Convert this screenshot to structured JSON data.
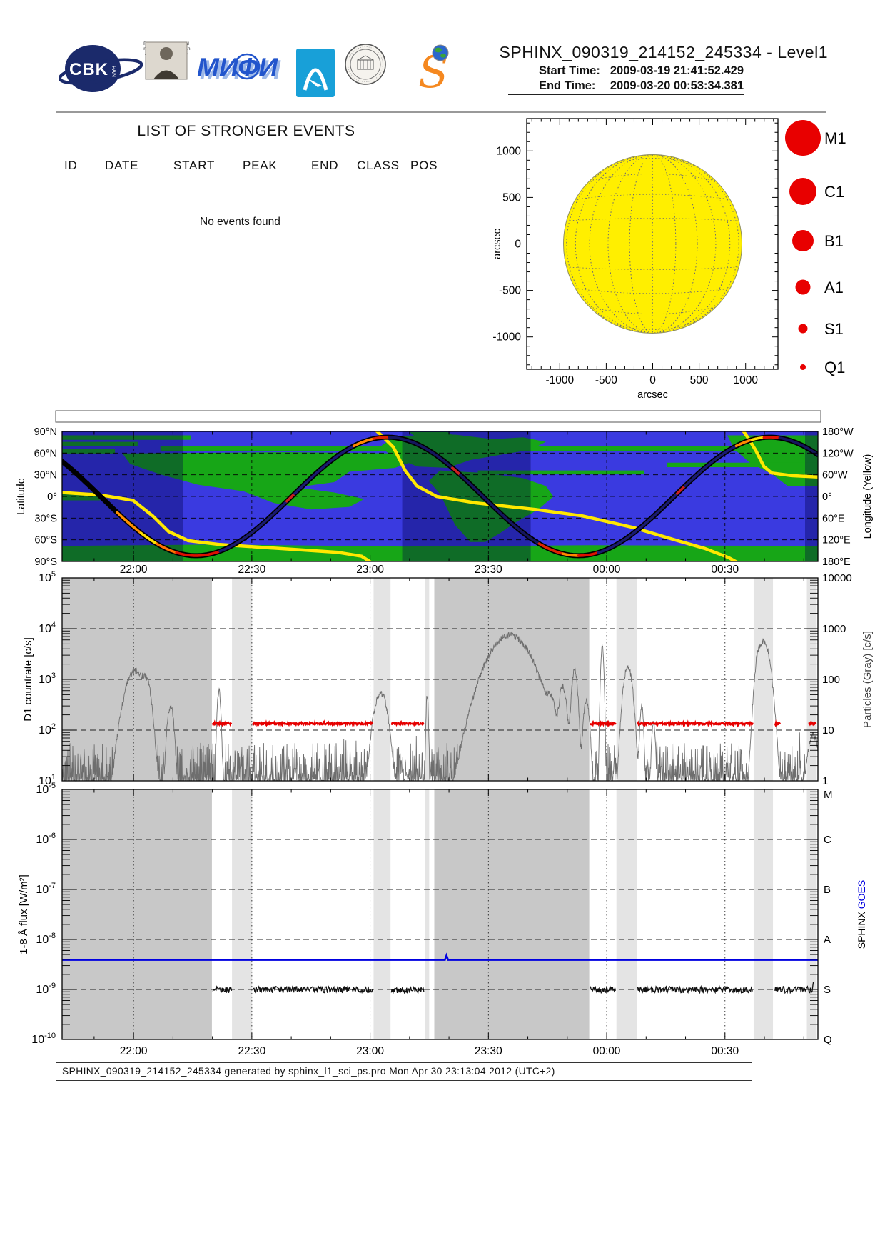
{
  "header": {
    "title": "SPHINX_090319_214152_245334 - Level1",
    "start_time_label": "Start Time:",
    "start_time_value": "2009-03-19  21:41:52.429",
    "end_time_label": "End Time:",
    "end_time_value": "2009-03-20  00:53:34.381",
    "logos": {
      "cbk": {
        "text": "CBK",
        "sub": "PAN"
      },
      "lebedev": {
        "caption_lines": [
          "P.N.Lebedev Physical",
          "Institute of the Russian",
          "Academy of Science"
        ]
      },
      "mephi": {
        "text": "МИФИ"
      },
      "arc": {
        "name": "blue-arch-logo"
      },
      "seal": {
        "name": "observatory-seal-logo"
      },
      "sphinx": {
        "text": "S"
      }
    }
  },
  "events_panel": {
    "title": "LIST OF STRONGER EVENTS",
    "columns": [
      "ID",
      "DATE",
      "START",
      "PEAK",
      "END",
      "CLASS",
      "POS"
    ],
    "empty_message": "No events found"
  },
  "footer": {
    "text": "SPHINX_090319_214152_245334 generated by sphinx_l1_sci_ps.pro Mon Apr 30 23:13:04 2012 (UTC+2)"
  },
  "colors": {
    "ocean": "#3a3ae0",
    "land": "#17a617",
    "night_overlay": "rgba(0,0,70,0.35)",
    "track_black": "#000000",
    "longitude_line": "#ffe800",
    "red_series": "#e60000",
    "gray_series": "#6e6e6e",
    "goes_blue": "#0000e0",
    "shade_dark": "#c8c8c8",
    "shade_light": "#e4e4e4",
    "sun_fill": "#ffef00",
    "legend_red": "#e80000"
  },
  "time_axis": {
    "start": "2009-03-19 21:41:52.429",
    "end": "2009-03-20 00:53:34.381",
    "duration_minutes": 191.7,
    "tick_labels": [
      "22:00",
      "22:30",
      "23:00",
      "23:30",
      "00:00",
      "00:30"
    ],
    "tick_minutes": [
      18.127,
      48.127,
      78.127,
      108.127,
      138.127,
      168.127
    ]
  },
  "chart_data": [
    {
      "id": "solar_disk",
      "type": "scatter",
      "xlabel": "arcsec",
      "ylabel": "arcsec",
      "xlim": [
        -1352,
        1352
      ],
      "ylim": [
        -1350,
        1350
      ],
      "xticks": [
        -1000,
        -500,
        0,
        500,
        1000
      ],
      "yticks": [
        -1000,
        -500,
        0,
        500,
        1000
      ],
      "sun_radius_arcsec": 960,
      "events": [],
      "legend_items": [
        {
          "label": "M1",
          "radius_px": 25
        },
        {
          "label": "C1",
          "radius_px": 19
        },
        {
          "label": "B1",
          "radius_px": 15
        },
        {
          "label": "A1",
          "radius_px": 10.5
        },
        {
          "label": "S1",
          "radius_px": 6.5
        },
        {
          "label": "Q1",
          "radius_px": 4
        }
      ]
    },
    {
      "id": "ground_track",
      "type": "line",
      "left_axis": {
        "label": "Latitude",
        "ticks": [
          "90°N",
          "60°N",
          "30°N",
          "0°",
          "30°S",
          "60°S",
          "90°S"
        ]
      },
      "right_axis": {
        "label": "Longitude (Yellow)",
        "ticks": [
          "180°W",
          "120°W",
          "60°W",
          "0°",
          "60°E",
          "120°E",
          "180°E"
        ]
      },
      "track": {
        "lat_amplitude_deg": 82,
        "period_minutes": 97,
        "phase_minutes": 58.25
      },
      "track_segments": [
        {
          "t0": 14,
          "t1": 20,
          "color": "#ff9000"
        },
        {
          "t0": 20,
          "t1": 24,
          "color": "#ffe000"
        },
        {
          "t0": 24,
          "t1": 29,
          "color": "#ff7000"
        },
        {
          "t0": 29,
          "t1": 40,
          "color": "#dd1000"
        },
        {
          "t0": 40,
          "t1": 57,
          "color": "#1a1a70"
        },
        {
          "t0": 57,
          "t1": 59,
          "color": "#cc2020"
        },
        {
          "t0": 59,
          "t1": 74,
          "color": "#1a1a70"
        },
        {
          "t0": 74,
          "t1": 79,
          "color": "#ff8800"
        },
        {
          "t0": 79,
          "t1": 83,
          "color": "#dd2200"
        },
        {
          "t0": 83,
          "t1": 99,
          "color": "#15155e"
        },
        {
          "t0": 99,
          "t1": 101,
          "color": "#cc2020"
        },
        {
          "t0": 101,
          "t1": 121,
          "color": "#15155e"
        },
        {
          "t0": 121,
          "t1": 127,
          "color": "#dd2200"
        },
        {
          "t0": 127,
          "t1": 131,
          "color": "#ff8800"
        },
        {
          "t0": 131,
          "t1": 136,
          "color": "#dd1000"
        },
        {
          "t0": 136,
          "t1": 156,
          "color": "#1a1a70"
        },
        {
          "t0": 156,
          "t1": 158,
          "color": "#cc2020"
        },
        {
          "t0": 158,
          "t1": 171,
          "color": "#1a1a70"
        },
        {
          "t0": 171,
          "t1": 175,
          "color": "#ff8800"
        },
        {
          "t0": 175,
          "t1": 178,
          "color": "#ffe000"
        },
        {
          "t0": 178,
          "t1": 182,
          "color": "#dd1000"
        },
        {
          "t0": 182,
          "t1": 191.7,
          "color": "#15155e"
        }
      ],
      "longitude_curve_branches": [
        [
          [
            0,
            0.47
          ],
          [
            10,
            0.49
          ],
          [
            18,
            0.53
          ],
          [
            23,
            0.65
          ],
          [
            27,
            0.77
          ],
          [
            32,
            0.84
          ],
          [
            40,
            0.87
          ],
          [
            55,
            0.9
          ],
          [
            70,
            0.93
          ],
          [
            76,
            0.96
          ],
          [
            79,
            1.02
          ]
        ],
        [
          [
            79.2,
            -0.02
          ],
          [
            81,
            0.03
          ],
          [
            84,
            0.12
          ],
          [
            87,
            0.3
          ],
          [
            90,
            0.42
          ],
          [
            95,
            0.5
          ],
          [
            105,
            0.55
          ],
          [
            120,
            0.6
          ],
          [
            132,
            0.65
          ],
          [
            145,
            0.74
          ],
          [
            155,
            0.83
          ],
          [
            163,
            0.9
          ],
          [
            169,
            0.97
          ],
          [
            172,
            1.02
          ]
        ],
        [
          [
            172.4,
            -0.02
          ],
          [
            174,
            0.05
          ],
          [
            176,
            0.15
          ],
          [
            178,
            0.27
          ],
          [
            180,
            0.32
          ],
          [
            185,
            0.34
          ],
          [
            191.7,
            0.35
          ]
        ]
      ],
      "night_bands_pct": [
        [
          0,
          16
        ],
        [
          45,
          62
        ],
        [
          98.3,
          100
        ]
      ],
      "continents_pct": [
        [
          [
            0,
            3
          ],
          [
            17,
            3
          ],
          [
            17,
            6.5
          ],
          [
            0,
            6.5
          ]
        ],
        [
          [
            0,
            8
          ],
          [
            10,
            8
          ],
          [
            10,
            11
          ],
          [
            0,
            11
          ]
        ],
        [
          [
            0,
            13.5
          ],
          [
            7,
            13.5
          ],
          [
            7,
            17
          ],
          [
            0,
            17
          ]
        ],
        [
          [
            13,
            11.5
          ],
          [
            95,
            11.5
          ],
          [
            95,
            15
          ],
          [
            13,
            15
          ]
        ],
        [
          [
            8,
            17
          ],
          [
            30,
            16
          ],
          [
            45,
            17
          ],
          [
            47,
            22
          ],
          [
            44,
            28
          ],
          [
            38,
            31
          ],
          [
            36,
            39
          ],
          [
            31,
            43
          ],
          [
            36,
            47
          ],
          [
            40,
            52
          ],
          [
            38,
            58
          ],
          [
            33,
            60
          ],
          [
            28,
            55
          ],
          [
            24,
            46
          ],
          [
            18,
            41
          ],
          [
            13,
            33
          ],
          [
            9,
            25
          ]
        ],
        [
          [
            44,
            4
          ],
          [
            52,
            2.5
          ],
          [
            57,
            6
          ],
          [
            61,
            4.5
          ],
          [
            64,
            8
          ],
          [
            62,
            14
          ],
          [
            58,
            18
          ],
          [
            54,
            22
          ],
          [
            51,
            28
          ],
          [
            47,
            27
          ],
          [
            44,
            20
          ],
          [
            42,
            12
          ]
        ],
        [
          [
            46,
            0.5
          ],
          [
            51,
            0.5
          ],
          [
            52,
            4
          ],
          [
            47,
            5.5
          ]
        ],
        [
          [
            50,
            30
          ],
          [
            56,
            32
          ],
          [
            61,
            36
          ],
          [
            64,
            42
          ],
          [
            65,
            50
          ],
          [
            63,
            60
          ],
          [
            60,
            70
          ],
          [
            58,
            78
          ],
          [
            56,
            85
          ],
          [
            54,
            85
          ],
          [
            52,
            72
          ],
          [
            51,
            60
          ],
          [
            50,
            48
          ],
          [
            48.5,
            38
          ]
        ],
        [
          [
            55,
            30
          ],
          [
            77,
            30
          ],
          [
            77,
            33
          ],
          [
            55,
            33
          ]
        ],
        [
          [
            88,
            3
          ],
          [
            100,
            3
          ],
          [
            100,
            42
          ],
          [
            96,
            42
          ],
          [
            94,
            33
          ],
          [
            91,
            24
          ],
          [
            89,
            14
          ]
        ],
        [
          [
            80,
            24
          ],
          [
            100,
            24
          ],
          [
            100,
            27.5
          ],
          [
            80,
            27.5
          ]
        ],
        [
          [
            0,
            47
          ],
          [
            5,
            47
          ],
          [
            5,
            53
          ],
          [
            0,
            53
          ]
        ],
        [
          [
            0,
            88
          ],
          [
            20,
            87
          ],
          [
            45,
            88.5
          ],
          [
            70,
            87.5
          ],
          [
            100,
            88
          ],
          [
            100,
            100
          ],
          [
            0,
            100
          ]
        ]
      ]
    },
    {
      "id": "d1_countrate",
      "type": "line",
      "left_axis": {
        "label": "D1 countrate [c/s]",
        "decade_exponents": [
          1,
          2,
          3,
          4,
          5
        ]
      },
      "right_axis": {
        "label": "Particles (Gray) [c/s]",
        "values": [
          1,
          10,
          100,
          1000,
          10000
        ]
      },
      "red_series": {
        "name": "D1 countrate",
        "level_cps": 135,
        "segments_min": [
          [
            38.2,
            43
          ],
          [
            48.4,
            78.8
          ],
          [
            83.5,
            91.8
          ],
          [
            133.9,
            140.4
          ],
          [
            146,
            175.2
          ],
          [
            180.8,
            182.2
          ],
          [
            189.3,
            191.3
          ]
        ]
      },
      "particle_series": {
        "name": "Particles",
        "baseline_cps_range": [
          10,
          60
        ],
        "peaks": [
          {
            "t_min": 18.5,
            "peak_cps": 1500,
            "halfwidth_min": 2.6
          },
          {
            "t_min": 21.5,
            "peak_cps": 700,
            "halfwidth_min": 1.2
          },
          {
            "t_min": 27.5,
            "peak_cps": 300,
            "halfwidth_min": 0.9
          },
          {
            "t_min": 39.8,
            "peak_cps": 600,
            "halfwidth_min": 0.5
          },
          {
            "t_min": 80.8,
            "peak_cps": 550,
            "halfwidth_min": 1.8
          },
          {
            "t_min": 92.6,
            "peak_cps": 500,
            "halfwidth_min": 0.3
          },
          {
            "t_min": 113.5,
            "peak_cps": 7500,
            "halfwidth_min": 5.5
          },
          {
            "t_min": 124,
            "peak_cps": 300,
            "halfwidth_min": 1.2
          },
          {
            "t_min": 127,
            "peak_cps": 700,
            "halfwidth_min": 1.0
          },
          {
            "t_min": 130,
            "peak_cps": 1500,
            "halfwidth_min": 0.8
          },
          {
            "t_min": 133,
            "peak_cps": 400,
            "halfwidth_min": 0.8
          },
          {
            "t_min": 137,
            "peak_cps": 4500,
            "halfwidth_min": 0.4
          },
          {
            "t_min": 143.5,
            "peak_cps": 1800,
            "halfwidth_min": 1.2
          },
          {
            "t_min": 147,
            "peak_cps": 300,
            "halfwidth_min": 0.5
          },
          {
            "t_min": 150,
            "peak_cps": 150,
            "halfwidth_min": 0.5
          },
          {
            "t_min": 176.5,
            "peak_cps": 1500,
            "halfwidth_min": 0.8
          },
          {
            "t_min": 178,
            "peak_cps": 5500,
            "halfwidth_min": 1.6
          },
          {
            "t_min": 190.5,
            "peak_cps": 80,
            "halfwidth_min": 1.5
          }
        ]
      },
      "shading": {
        "dark_min": [
          [
            0,
            38
          ],
          [
            94.4,
            133.7
          ]
        ],
        "light_min": [
          [
            43.1,
            48.2
          ],
          [
            79,
            83.3
          ],
          [
            92,
            93.1
          ],
          [
            140.6,
            145.8
          ],
          [
            175.4,
            180.3
          ],
          [
            188.9,
            191.4
          ]
        ]
      }
    },
    {
      "id": "flux",
      "type": "line",
      "left_axis": {
        "label": "1-8 Å flux [W/m²]",
        "decade_exponents": [
          -5,
          -6,
          -7,
          -8,
          -9,
          -10
        ]
      },
      "right_axis": {
        "letters": [
          "M",
          "C",
          "B",
          "A",
          "S",
          "Q"
        ],
        "series_labels": [
          {
            "text": "SPHINX",
            "color": "#000000"
          },
          {
            "text": "GOES",
            "color": "#0000e0"
          }
        ]
      },
      "goes_series": {
        "name": "GOES",
        "level_wm2": 3.9e-09,
        "bump": {
          "t_min": 97.5,
          "peak_wm2": 4.8e-09
        }
      },
      "sphinx_series": {
        "name": "SPHINX",
        "level_wm2": 1e-09,
        "segments_min": [
          [
            38.2,
            43
          ],
          [
            48.4,
            78.8
          ],
          [
            83.5,
            91.8
          ],
          [
            133.9,
            140.4
          ],
          [
            146,
            175.2
          ],
          [
            180.8,
            191.0
          ]
        ]
      },
      "shading": {
        "dark_min": [
          [
            0,
            38
          ],
          [
            94.4,
            133.7
          ]
        ],
        "light_min": [
          [
            43.1,
            48.2
          ],
          [
            79,
            83.3
          ],
          [
            92,
            93.1
          ],
          [
            140.6,
            145.8
          ],
          [
            175.4,
            180.3
          ],
          [
            188.9,
            191.4
          ]
        ]
      }
    }
  ]
}
